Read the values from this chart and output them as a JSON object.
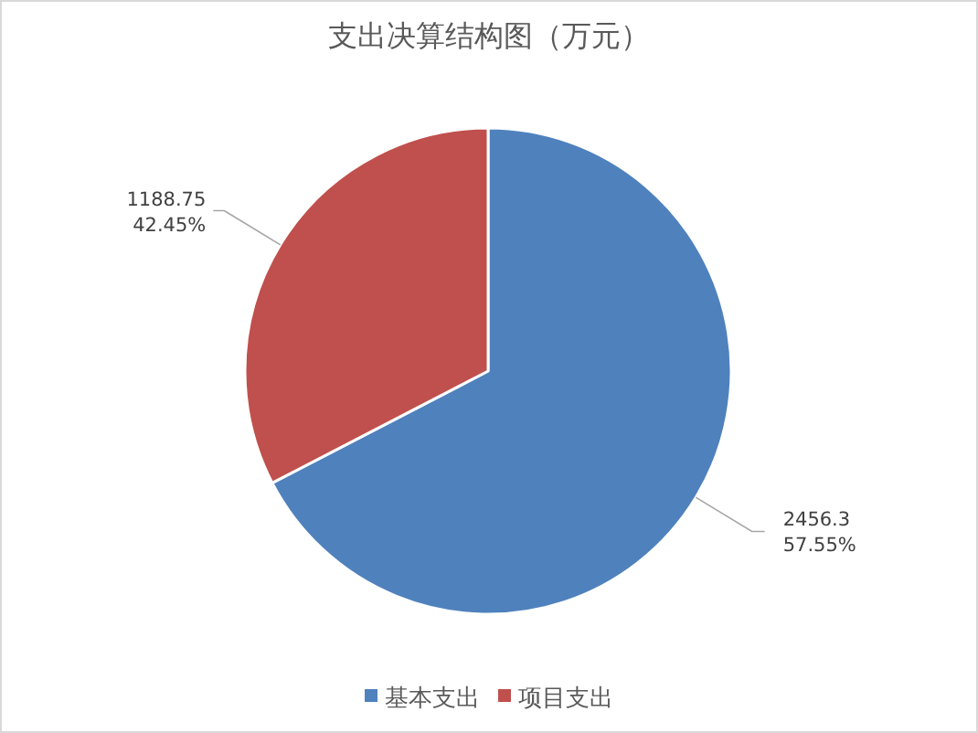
{
  "chart_data": {
    "type": "pie",
    "title": "支出决算结构图（万元）",
    "categories": [
      "基本支出",
      "项目支出"
    ],
    "values": [
      2456.3,
      1188.75
    ],
    "colors": [
      "#4f81bd",
      "#c0504d"
    ],
    "value_labels": [
      "2456.3\n57.55%",
      "1188.75\n42.45%"
    ],
    "legend": "bottom"
  }
}
